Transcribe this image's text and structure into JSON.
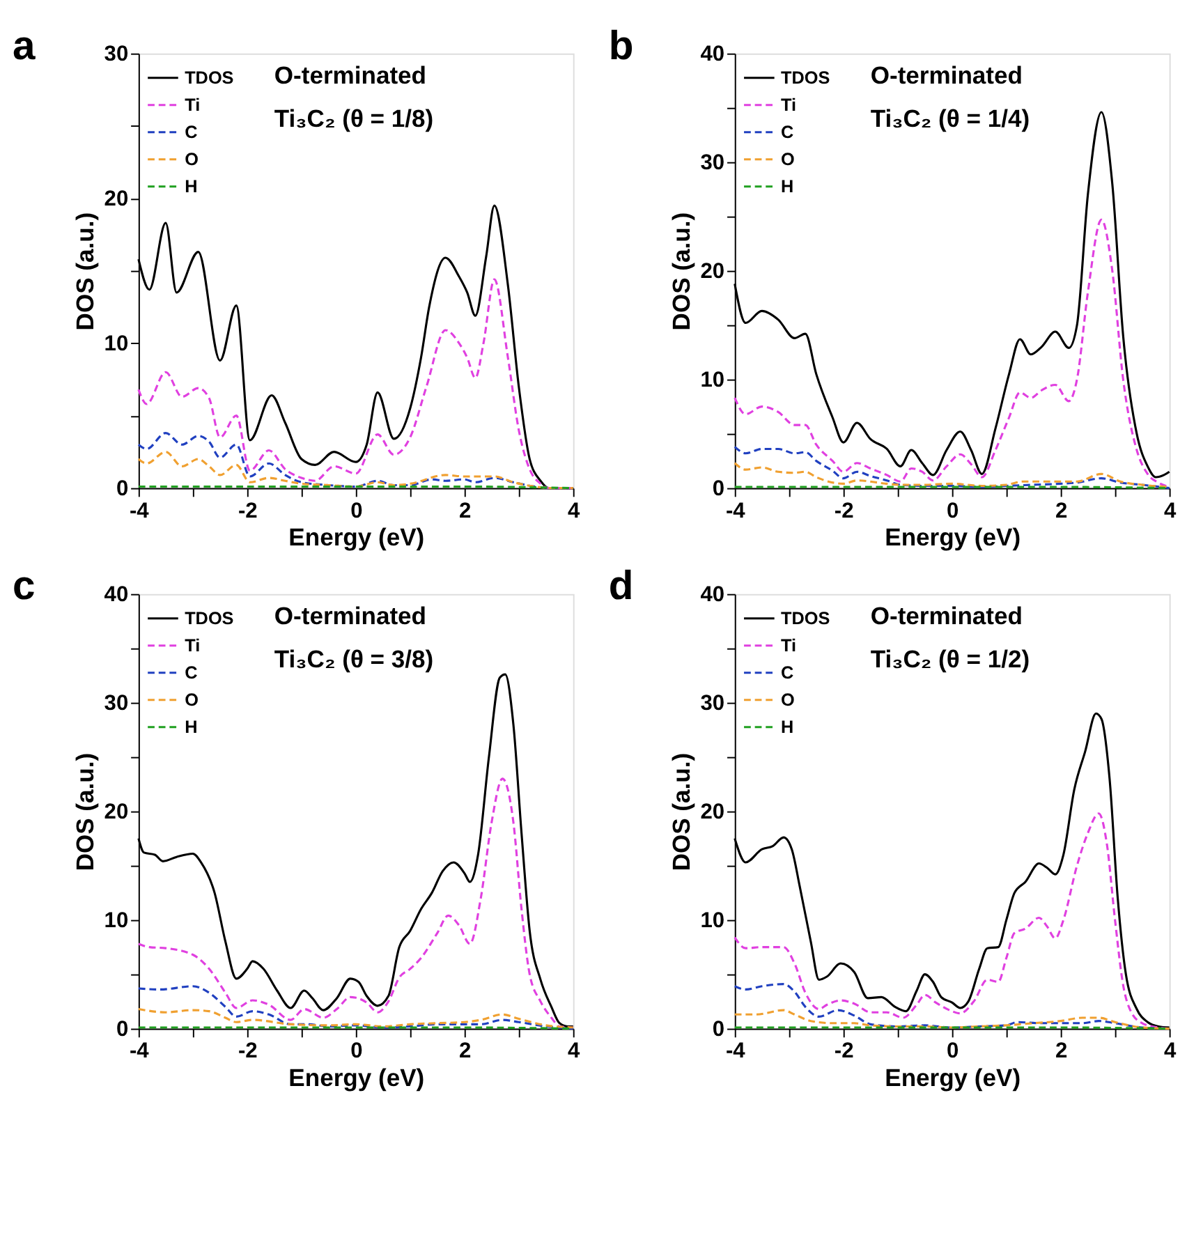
{
  "chart_data": [
    {
      "type": "line",
      "title": "a",
      "annotations": [
        "O-terminated",
        "Ti₃C₂ (θ = 1/8)"
      ],
      "xlabel": "Energy (eV)",
      "ylabel": "DOS (a.u.)",
      "legend": "top left",
      "xlim": [
        -4,
        4
      ],
      "xticks": [
        -4,
        {
          "value": -3,
          "label": null
        },
        -2,
        {
          "value": -1,
          "label": null
        },
        0,
        {
          "value": 1,
          "label": null
        },
        2,
        {
          "value": 3,
          "label": null
        },
        4
      ],
      "ylim": [
        0,
        30
      ],
      "yticks": [
        0,
        {
          "value": 5,
          "label": null
        },
        10,
        {
          "value": 15,
          "label": null
        },
        20,
        {
          "value": 25,
          "label": null
        },
        30
      ],
      "series": [
        {
          "name": "TDOS",
          "color": "#000000",
          "line_style": "solid",
          "x": [
            -4,
            -3.8,
            -3.5,
            -3.3,
            -2.9,
            -2.5,
            -2.2,
            -1.95,
            -1.55,
            -1.3,
            -1.0,
            -0.75,
            -0.4,
            0,
            0.2,
            0.4,
            0.7,
            1.0,
            1.2,
            1.35,
            1.65,
            1.9,
            2.05,
            2.2,
            2.4,
            2.55,
            2.8,
            3.0,
            3.2,
            3.4,
            3.55,
            4
          ],
          "values": [
            15.8,
            13.7,
            18.3,
            13.5,
            16.3,
            8.8,
            12.6,
            3.3,
            6.4,
            4.5,
            2.0,
            1.6,
            2.5,
            1.8,
            3.0,
            6.6,
            3.4,
            5.5,
            9,
            12.5,
            15.9,
            14.6,
            13.5,
            11.9,
            16,
            19.5,
            14,
            7,
            2,
            0.5,
            0,
            0
          ]
        },
        {
          "name": "Ti",
          "color": "#e040e0",
          "line_style": "dashed",
          "x": [
            -4,
            -3.85,
            -3.5,
            -3.2,
            -2.9,
            -2.7,
            -2.5,
            -2.2,
            -1.95,
            -1.6,
            -1.3,
            -1.0,
            -0.75,
            -0.4,
            0,
            0.4,
            0.7,
            1.0,
            1.3,
            1.65,
            1.9,
            2.05,
            2.2,
            2.35,
            2.55,
            2.8,
            3.0,
            3.2,
            3.4,
            3.55,
            4
          ],
          "values": [
            6.8,
            5.8,
            8.0,
            6.3,
            6.9,
            6.2,
            3.5,
            5.0,
            1.2,
            2.6,
            1.3,
            0.7,
            0.5,
            1.5,
            1.0,
            3.7,
            2.3,
            3.5,
            7,
            10.9,
            10,
            9,
            7.6,
            10,
            14.4,
            9,
            4,
            1.3,
            0.3,
            0,
            0
          ]
        },
        {
          "name": "C",
          "color": "#2040c0",
          "line_style": "dashed",
          "x": [
            -4,
            -3.85,
            -3.5,
            -3.2,
            -2.9,
            -2.7,
            -2.5,
            -2.2,
            -1.95,
            -1.6,
            -1.3,
            -1.0,
            -0.5,
            0,
            0.4,
            0.7,
            1.0,
            1.4,
            1.65,
            2.0,
            2.2,
            2.55,
            2.9,
            3.3,
            3.6,
            4
          ],
          "values": [
            3.0,
            2.7,
            3.8,
            3.0,
            3.6,
            3.2,
            2.1,
            3.0,
            0.8,
            1.7,
            0.9,
            0.4,
            0.2,
            0.1,
            0.5,
            0.2,
            0.2,
            0.6,
            0.5,
            0.6,
            0.4,
            0.7,
            0.4,
            0.1,
            0,
            0
          ]
        },
        {
          "name": "O",
          "color": "#f0a030",
          "line_style": "dashed",
          "x": [
            -4,
            -3.85,
            -3.5,
            -3.2,
            -2.9,
            -2.7,
            -2.5,
            -2.2,
            -1.95,
            -1.6,
            -1.3,
            -1.0,
            -0.5,
            0,
            0.4,
            0.7,
            1.0,
            1.65,
            2.0,
            2.55,
            2.9,
            3.3,
            3.6,
            4
          ],
          "values": [
            2.0,
            1.7,
            2.5,
            1.5,
            2.0,
            1.5,
            0.9,
            1.6,
            0.4,
            0.7,
            0.5,
            0.3,
            0.2,
            0.1,
            0.4,
            0.2,
            0.3,
            0.9,
            0.8,
            0.8,
            0.4,
            0.1,
            0,
            0
          ]
        },
        {
          "name": "H",
          "color": "#20a020",
          "line_style": "dashed",
          "x": [
            -4,
            -2,
            0,
            2,
            4
          ],
          "values": [
            0.1,
            0.1,
            0.1,
            0.1,
            0
          ]
        }
      ]
    },
    {
      "type": "line",
      "title": "b",
      "annotations": [
        "O-terminated",
        "Ti₃C₂ (θ = 1/4)"
      ],
      "xlabel": "Energy (eV)",
      "ylabel": "DOS (a.u.)",
      "legend": "top left",
      "xlim": [
        -4,
        4
      ],
      "xticks": [
        -4,
        {
          "value": -3,
          "label": null
        },
        -2,
        {
          "value": -1,
          "label": null
        },
        0,
        {
          "value": 1,
          "label": null
        },
        2,
        {
          "value": 3,
          "label": null
        },
        4
      ],
      "ylim": [
        0,
        40
      ],
      "yticks": [
        0,
        {
          "value": 5,
          "label": null
        },
        10,
        {
          "value": 15,
          "label": null
        },
        20,
        {
          "value": 25,
          "label": null
        },
        30,
        {
          "value": 35,
          "label": null
        },
        40
      ],
      "series": [
        {
          "name": "TDOS",
          "color": "#000000",
          "line_style": "solid",
          "x": [
            -4,
            -3.8,
            -3.5,
            -3.2,
            -2.9,
            -2.7,
            -2.5,
            -2.2,
            -2.0,
            -1.75,
            -1.5,
            -1.2,
            -0.95,
            -0.75,
            -0.55,
            -0.35,
            -0.1,
            0.15,
            0.35,
            0.55,
            0.8,
            1.05,
            1.25,
            1.45,
            1.65,
            1.9,
            2.15,
            2.3,
            2.5,
            2.75,
            2.95,
            3.15,
            3.4,
            3.6,
            3.75,
            3.9,
            4.0
          ],
          "values": [
            18.8,
            15.2,
            16.3,
            15.5,
            13.8,
            14.2,
            10.5,
            6.5,
            4.2,
            6.0,
            4.5,
            3.6,
            2.0,
            3.5,
            2.3,
            1.2,
            3.5,
            5.2,
            3.5,
            1.3,
            5.5,
            10.5,
            13.7,
            12.3,
            13,
            14.4,
            12.9,
            15,
            27,
            34.6,
            28,
            14,
            5,
            2,
            1,
            1.2,
            1.5
          ]
        },
        {
          "name": "Ti",
          "color": "#e040e0",
          "line_style": "dashed",
          "x": [
            -4,
            -3.8,
            -3.5,
            -3.2,
            -2.9,
            -2.7,
            -2.5,
            -2.2,
            -2.0,
            -1.75,
            -1.5,
            -1.2,
            -0.95,
            -0.75,
            -0.55,
            -0.35,
            -0.1,
            0.15,
            0.35,
            0.55,
            0.8,
            1.05,
            1.25,
            1.45,
            1.65,
            1.9,
            2.15,
            2.3,
            2.5,
            2.75,
            2.95,
            3.15,
            3.4,
            3.6,
            3.8,
            4.0
          ],
          "values": [
            8.3,
            6.8,
            7.5,
            7.0,
            5.8,
            5.8,
            4.0,
            2.5,
            1.5,
            2.3,
            1.8,
            1.2,
            0.6,
            1.8,
            1.5,
            0.7,
            2.0,
            3.1,
            2.2,
            1.0,
            3.5,
            6.5,
            8.8,
            8.3,
            9.0,
            9.5,
            8.0,
            10,
            18,
            24.7,
            20,
            10,
            3.5,
            1.3,
            0.5,
            0.1
          ]
        },
        {
          "name": "C",
          "color": "#2040c0",
          "line_style": "dashed",
          "x": [
            -4,
            -3.8,
            -3.5,
            -3.2,
            -2.9,
            -2.7,
            -2.5,
            -2.2,
            -2.0,
            -1.75,
            -1.5,
            -1.2,
            -0.95,
            -0.5,
            0,
            0.55,
            1.0,
            1.5,
            2.0,
            2.3,
            2.75,
            3.1,
            3.5,
            4
          ],
          "values": [
            3.8,
            3.2,
            3.6,
            3.6,
            3.2,
            3.3,
            2.5,
            1.6,
            0.9,
            1.5,
            1.1,
            0.7,
            0.3,
            0.2,
            0.2,
            0.1,
            0.2,
            0.3,
            0.4,
            0.5,
            0.9,
            0.5,
            0.3,
            0
          ]
        },
        {
          "name": "O",
          "color": "#f0a030",
          "line_style": "dashed",
          "x": [
            -4,
            -3.8,
            -3.5,
            -3.2,
            -2.9,
            -2.7,
            -2.5,
            -2.0,
            -1.75,
            -1.2,
            -0.95,
            -0.5,
            0,
            0.55,
            1.0,
            1.3,
            2.0,
            2.3,
            2.75,
            3.1,
            3.5,
            4
          ],
          "values": [
            2.3,
            1.7,
            1.9,
            1.5,
            1.4,
            1.5,
            1.0,
            0.4,
            0.7,
            0.4,
            0.3,
            0.3,
            0.4,
            0.2,
            0.3,
            0.6,
            0.6,
            0.6,
            1.3,
            0.6,
            0.3,
            0.1
          ]
        },
        {
          "name": "H",
          "color": "#20a020",
          "line_style": "dashed",
          "x": [
            -4,
            -2,
            0,
            2,
            4
          ],
          "values": [
            0.1,
            0.1,
            0.1,
            0.1,
            0
          ]
        }
      ]
    },
    {
      "type": "line",
      "title": "c",
      "annotations": [
        "O-terminated",
        "Ti₃C₂ (θ = 3/8)"
      ],
      "xlabel": "Energy (eV)",
      "ylabel": "DOS (a.u.)",
      "legend": "top left",
      "xlim": [
        -4,
        4
      ],
      "xticks": [
        -4,
        {
          "value": -3,
          "label": null
        },
        -2,
        {
          "value": -1,
          "label": null
        },
        0,
        {
          "value": 1,
          "label": null
        },
        2,
        {
          "value": 3,
          "label": null
        },
        4
      ],
      "ylim": [
        0,
        40
      ],
      "yticks": [
        0,
        {
          "value": 5,
          "label": null
        },
        10,
        {
          "value": 15,
          "label": null
        },
        20,
        {
          "value": 25,
          "label": null
        },
        30,
        {
          "value": 35,
          "label": null
        },
        40
      ],
      "series": [
        {
          "name": "TDOS",
          "color": "#000000",
          "line_style": "solid",
          "x": [
            -4,
            -3.9,
            -3.7,
            -3.55,
            -3.3,
            -3.0,
            -2.85,
            -2.6,
            -2.4,
            -2.2,
            -2.0,
            -1.9,
            -1.7,
            -1.45,
            -1.2,
            -0.95,
            -0.8,
            -0.6,
            -0.35,
            -0.1,
            0.05,
            0.2,
            0.4,
            0.6,
            0.8,
            1.0,
            1.2,
            1.4,
            1.6,
            1.8,
            2.0,
            2.1,
            2.25,
            2.45,
            2.65,
            2.75,
            2.9,
            3.05,
            3.2,
            3.4,
            3.6,
            3.75,
            3.9,
            4
          ],
          "values": [
            17.5,
            16.2,
            16.0,
            15.4,
            15.8,
            16.1,
            15.3,
            12.5,
            8,
            4.6,
            5.5,
            6.2,
            5.5,
            3.5,
            1.9,
            3.5,
            2.8,
            1.7,
            2.8,
            4.6,
            4.3,
            3.0,
            2.1,
            3,
            7.5,
            9,
            11,
            12.5,
            14.5,
            15.3,
            14.3,
            13.5,
            16,
            25,
            32.3,
            32.6,
            28,
            18,
            9,
            4.5,
            2.0,
            0.5,
            0.2,
            0.2
          ]
        },
        {
          "name": "Ti",
          "color": "#e040e0",
          "line_style": "dashed",
          "x": [
            -4,
            -3.8,
            -3.5,
            -3.0,
            -2.7,
            -2.4,
            -2.2,
            -1.9,
            -1.6,
            -1.2,
            -0.95,
            -0.6,
            -0.35,
            -0.1,
            0.2,
            0.4,
            0.6,
            0.8,
            1.0,
            1.2,
            1.5,
            1.7,
            1.9,
            2.1,
            2.3,
            2.5,
            2.7,
            2.9,
            3.05,
            3.2,
            3.4,
            3.6,
            3.75,
            4
          ],
          "values": [
            7.8,
            7.5,
            7.4,
            6.8,
            5.5,
            3.3,
            1.9,
            2.6,
            2.2,
            0.8,
            1.8,
            1.0,
            1.8,
            2.9,
            2.4,
            1.5,
            2.5,
            4.7,
            5.5,
            6.5,
            8.8,
            10.4,
            9.5,
            7.8,
            12,
            19,
            23,
            19,
            11,
            5,
            2.5,
            1.0,
            0.2,
            0.1
          ]
        },
        {
          "name": "C",
          "color": "#2040c0",
          "line_style": "dashed",
          "x": [
            -4,
            -3.6,
            -3.0,
            -2.7,
            -2.4,
            -2.2,
            -1.9,
            -1.6,
            -1.2,
            -0.9,
            -0.5,
            0,
            0.5,
            1.0,
            1.5,
            2.0,
            2.3,
            2.7,
            3.0,
            3.5,
            4
          ],
          "values": [
            3.7,
            3.6,
            3.9,
            3.3,
            2.0,
            1.1,
            1.6,
            1.3,
            0.4,
            0.4,
            0.2,
            0.3,
            0.1,
            0.2,
            0.4,
            0.4,
            0.4,
            0.8,
            0.6,
            0.2,
            0
          ]
        },
        {
          "name": "O",
          "color": "#f0a030",
          "line_style": "dashed",
          "x": [
            -4,
            -3.5,
            -3.0,
            -2.7,
            -2.4,
            -2.2,
            -1.9,
            -1.2,
            -0.5,
            0,
            0.5,
            1.0,
            1.5,
            2.0,
            2.3,
            2.7,
            3.0,
            3.5,
            4
          ],
          "values": [
            1.8,
            1.5,
            1.7,
            1.6,
            1.0,
            0.6,
            0.8,
            0.4,
            0.3,
            0.4,
            0.2,
            0.4,
            0.5,
            0.6,
            0.8,
            1.3,
            0.9,
            0.3,
            0.1
          ]
        },
        {
          "name": "H",
          "color": "#20a020",
          "line_style": "dashed",
          "x": [
            -4,
            -2,
            0,
            2,
            4
          ],
          "values": [
            0.1,
            0.1,
            0.1,
            0.1,
            0
          ]
        }
      ]
    },
    {
      "type": "line",
      "title": "d",
      "annotations": [
        "O-terminated",
        "Ti₃C₂ (θ = 1/2)"
      ],
      "xlabel": "Energy (eV)",
      "ylabel": "DOS (a.u.)",
      "legend": "top left",
      "xlim": [
        -4,
        4
      ],
      "xticks": [
        -4,
        {
          "value": -3,
          "label": null
        },
        -2,
        {
          "value": -1,
          "label": null
        },
        0,
        {
          "value": 1,
          "label": null
        },
        2,
        {
          "value": 3,
          "label": null
        },
        4
      ],
      "ylim": [
        0,
        40
      ],
      "yticks": [
        0,
        {
          "value": 5,
          "label": null
        },
        10,
        {
          "value": 15,
          "label": null
        },
        20,
        {
          "value": 25,
          "label": null
        },
        30,
        {
          "value": 35,
          "label": null
        },
        40
      ],
      "series": [
        {
          "name": "TDOS",
          "color": "#000000",
          "line_style": "solid",
          "x": [
            -4,
            -3.8,
            -3.5,
            -3.3,
            -3.1,
            -2.95,
            -2.8,
            -2.6,
            -2.45,
            -2.3,
            -2.05,
            -1.8,
            -1.55,
            -1.3,
            -1.05,
            -0.85,
            -0.65,
            -0.5,
            -0.35,
            -0.2,
            0,
            0.15,
            0.3,
            0.5,
            0.65,
            0.85,
            1.0,
            1.15,
            1.35,
            1.6,
            1.75,
            1.9,
            2.05,
            2.25,
            2.45,
            2.65,
            2.75,
            2.9,
            3.05,
            3.2,
            3.4,
            3.6,
            3.8,
            4
          ],
          "values": [
            17.5,
            15.3,
            16.5,
            16.8,
            17.6,
            16.5,
            13,
            8,
            4.5,
            4.8,
            6.0,
            5.2,
            2.8,
            2.9,
            2.0,
            1.6,
            3.5,
            5.0,
            4.3,
            2.9,
            2.4,
            1.9,
            2.5,
            5.5,
            7.4,
            7.5,
            10,
            12.5,
            13.5,
            15.2,
            14.8,
            14.2,
            16,
            22,
            25.5,
            29.0,
            28.5,
            23,
            12,
            5,
            1.8,
            0.6,
            0.2,
            0.1
          ]
        },
        {
          "name": "Ti",
          "color": "#e040e0",
          "line_style": "dashed",
          "x": [
            -4,
            -3.8,
            -3.5,
            -3.1,
            -2.9,
            -2.7,
            -2.45,
            -2.3,
            -2.05,
            -1.8,
            -1.5,
            -1.2,
            -0.9,
            -0.65,
            -0.5,
            -0.3,
            0,
            0.15,
            0.4,
            0.65,
            0.85,
            1.0,
            1.15,
            1.35,
            1.6,
            1.75,
            1.9,
            2.05,
            2.3,
            2.5,
            2.7,
            2.85,
            3.0,
            3.15,
            3.3,
            3.5,
            3.8,
            4
          ],
          "values": [
            8.4,
            7.4,
            7.5,
            7.5,
            6,
            3.3,
            1.8,
            2.2,
            2.6,
            2.3,
            1.5,
            1.5,
            1.0,
            2.2,
            3.1,
            2.4,
            1.6,
            1.4,
            2.5,
            4.5,
            4.3,
            6.5,
            8.8,
            9.2,
            10.2,
            9.4,
            8.3,
            10,
            15,
            18,
            19.8,
            17,
            10,
            4,
            1.5,
            0.5,
            0.1,
            0
          ]
        },
        {
          "name": "C",
          "color": "#2040c0",
          "line_style": "dashed",
          "x": [
            -4,
            -3.8,
            -3.5,
            -3.1,
            -2.9,
            -2.7,
            -2.45,
            -2.1,
            -1.8,
            -1.5,
            -1.0,
            -0.5,
            0,
            0.5,
            1.0,
            1.2,
            1.6,
            2.0,
            2.4,
            2.7,
            3.0,
            3.5,
            4
          ],
          "values": [
            3.9,
            3.6,
            3.9,
            4.1,
            3.4,
            2.0,
            1.1,
            1.7,
            1.2,
            0.4,
            0.2,
            0.3,
            0.1,
            0.2,
            0.3,
            0.6,
            0.5,
            0.5,
            0.5,
            0.7,
            0.5,
            0.1,
            0
          ]
        },
        {
          "name": "O",
          "color": "#f0a030",
          "line_style": "dashed",
          "x": [
            -4,
            -3.6,
            -3.1,
            -2.9,
            -2.6,
            -2.2,
            -1.8,
            -1.5,
            -1.0,
            -0.5,
            0,
            0.5,
            1.0,
            1.5,
            2.0,
            2.4,
            2.7,
            3.0,
            3.5,
            4
          ],
          "values": [
            1.3,
            1.3,
            1.7,
            1.3,
            0.7,
            0.5,
            0.5,
            0.3,
            0.2,
            0.2,
            0.1,
            0.2,
            0.3,
            0.5,
            0.7,
            1.0,
            1.0,
            0.6,
            0.1,
            0
          ]
        },
        {
          "name": "H",
          "color": "#20a020",
          "line_style": "dashed",
          "x": [
            -4,
            -2,
            0,
            2,
            4
          ],
          "values": [
            0.1,
            0.1,
            0.1,
            0.1,
            0
          ]
        }
      ]
    }
  ]
}
